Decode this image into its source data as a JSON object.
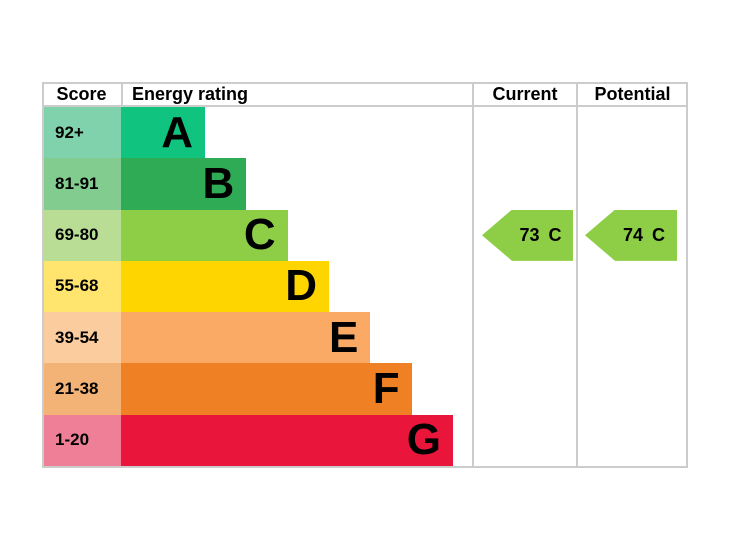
{
  "header": {
    "score": "Score",
    "energy_rating": "Energy rating",
    "current": "Current",
    "potential": "Potential"
  },
  "colors": {
    "border": "#cccccc",
    "arrow_fill": "#8dce46",
    "text": "#000000",
    "background": "#ffffff"
  },
  "chart_data": {
    "type": "bar",
    "variant": "epc-energy-efficiency-rating",
    "title": "Energy rating",
    "bands": [
      {
        "letter": "A",
        "score_range": "92+",
        "bar_color": "#10c480",
        "score_cell_color": "#7fd2ab"
      },
      {
        "letter": "B",
        "score_range": "81-91",
        "bar_color": "#2eab54",
        "score_cell_color": "#81cc8e"
      },
      {
        "letter": "C",
        "score_range": "69-80",
        "bar_color": "#8dce46",
        "score_cell_color": "#b9dd95"
      },
      {
        "letter": "D",
        "score_range": "55-68",
        "bar_color": "#ffd500",
        "score_cell_color": "#ffe46d"
      },
      {
        "letter": "E",
        "score_range": "39-54",
        "bar_color": "#fbaa65",
        "score_cell_color": "#fbcc9e"
      },
      {
        "letter": "F",
        "score_range": "21-38",
        "bar_color": "#ef8023",
        "score_cell_color": "#f3b377"
      },
      {
        "letter": "G",
        "score_range": "1-20",
        "bar_color": "#e9153b",
        "score_cell_color": "#ef7f97"
      }
    ],
    "current": {
      "score": 73,
      "band": "C"
    },
    "potential": {
      "score": 74,
      "band": "C"
    }
  }
}
